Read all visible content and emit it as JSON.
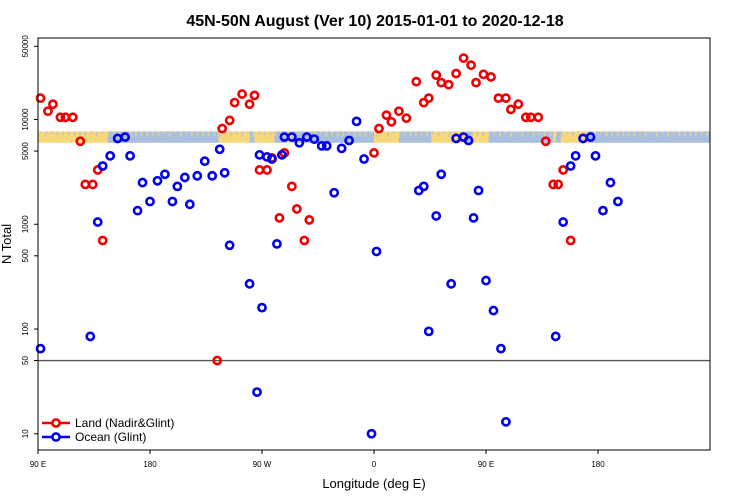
{
  "chart_data": {
    "type": "scatter",
    "title": "45N-50N August (Ver 10)   2015-01-01 to 2020-12-18",
    "xlabel": "Longitude (deg E)",
    "ylabel": "N Total",
    "y_scale": "log",
    "xlim": [
      -90,
      180
    ],
    "ylim": [
      7,
      60000
    ],
    "x_ticks": [
      {
        "value": -90,
        "label": "90 E"
      },
      {
        "value": -45,
        "label": "180"
      },
      {
        "value": 0,
        "label": "90 W"
      },
      {
        "value": 45,
        "label": "0"
      },
      {
        "value": 90,
        "label": "90 E"
      },
      {
        "value": 135,
        "label": "180"
      }
    ],
    "y_ticks": [
      10,
      50,
      100,
      500,
      1000,
      5000,
      10000,
      50000
    ],
    "reference_line": 50,
    "band": {
      "y_low": 6000,
      "y_high": 7700,
      "land_color": "#f9d87a",
      "ocean_color": "#a8bfe0"
    },
    "legend_position": "bottom-left",
    "series": [
      {
        "name": "Land (Nadir&Glint)",
        "color": "#ee0000",
        "points": [
          [
            -89,
            16000
          ],
          [
            -86,
            12000
          ],
          [
            -84,
            14000
          ],
          [
            -81,
            10500
          ],
          [
            -79,
            10500
          ],
          [
            -76,
            10500
          ],
          [
            -73,
            6200
          ],
          [
            -71,
            2400
          ],
          [
            -68,
            2400
          ],
          [
            -66,
            3300
          ],
          [
            -64,
            700
          ],
          [
            -18,
            50
          ],
          [
            -16,
            8200
          ],
          [
            -13,
            9800
          ],
          [
            -11,
            14500
          ],
          [
            -8,
            17500
          ],
          [
            -5,
            14000
          ],
          [
            -3,
            17000
          ],
          [
            -1,
            3300
          ],
          [
            2,
            3300
          ],
          [
            4,
            4300
          ],
          [
            7,
            1150
          ],
          [
            9,
            4800
          ],
          [
            12,
            2300
          ],
          [
            14,
            1400
          ],
          [
            17,
            700
          ],
          [
            19,
            1100
          ],
          [
            45,
            4800
          ],
          [
            47,
            8200
          ],
          [
            50,
            11000
          ],
          [
            52,
            9500
          ],
          [
            55,
            12000
          ],
          [
            58,
            10300
          ],
          [
            62,
            23000
          ],
          [
            65,
            14500
          ],
          [
            67,
            16000
          ],
          [
            70,
            26500
          ],
          [
            72,
            22500
          ],
          [
            75,
            21500
          ],
          [
            78,
            27500
          ],
          [
            81,
            38500
          ],
          [
            84,
            33000
          ],
          [
            86,
            22500
          ],
          [
            89,
            27000
          ],
          [
            92,
            25500
          ],
          [
            95,
            16000
          ],
          [
            98,
            16000
          ],
          [
            100,
            12500
          ],
          [
            103,
            14000
          ],
          [
            106,
            10500
          ],
          [
            108,
            10500
          ],
          [
            111,
            10500
          ],
          [
            114,
            6200
          ],
          [
            117,
            2400
          ],
          [
            119,
            2400
          ],
          [
            121,
            3300
          ],
          [
            124,
            700
          ]
        ]
      },
      {
        "name": "Ocean (Glint)",
        "color": "#0000ee",
        "points": [
          [
            -89,
            65
          ],
          [
            -69,
            85
          ],
          [
            -66,
            1050
          ],
          [
            -64,
            3600
          ],
          [
            -61,
            4500
          ],
          [
            -58,
            6600
          ],
          [
            -55,
            6800
          ],
          [
            -53,
            4500
          ],
          [
            -50,
            1350
          ],
          [
            -48,
            2500
          ],
          [
            -45,
            1650
          ],
          [
            -42,
            2600
          ],
          [
            -39,
            3000
          ],
          [
            -36,
            1650
          ],
          [
            -34,
            2300
          ],
          [
            -31,
            2800
          ],
          [
            -29,
            1550
          ],
          [
            -26,
            2900
          ],
          [
            -23,
            4000
          ],
          [
            -20,
            2900
          ],
          [
            -17,
            5200
          ],
          [
            -15,
            3100
          ],
          [
            -13,
            630
          ],
          [
            -5,
            270
          ],
          [
            0,
            160
          ],
          [
            2,
            4400
          ],
          [
            4,
            4200
          ],
          [
            -2,
            25
          ],
          [
            -1,
            4600
          ],
          [
            6,
            650
          ],
          [
            8,
            4600
          ],
          [
            9,
            6800
          ],
          [
            12,
            6800
          ],
          [
            15,
            6000
          ],
          [
            18,
            6800
          ],
          [
            21,
            6500
          ],
          [
            24,
            5600
          ],
          [
            26,
            5600
          ],
          [
            29,
            2000
          ],
          [
            32,
            5300
          ],
          [
            35,
            6300
          ],
          [
            38,
            9600
          ],
          [
            41,
            4200
          ],
          [
            44,
            10
          ],
          [
            46,
            550
          ],
          [
            63,
            2100
          ],
          [
            65,
            2300
          ],
          [
            67,
            95
          ],
          [
            70,
            1200
          ],
          [
            72,
            3000
          ],
          [
            76,
            270
          ],
          [
            78,
            6600
          ],
          [
            81,
            6800
          ],
          [
            83,
            6300
          ],
          [
            85,
            1150
          ],
          [
            87,
            2100
          ],
          [
            90,
            290
          ],
          [
            93,
            150
          ],
          [
            96,
            65
          ],
          [
            98,
            13
          ],
          [
            118,
            85
          ],
          [
            121,
            1050
          ],
          [
            124,
            3600
          ],
          [
            126,
            4500
          ],
          [
            129,
            6600
          ],
          [
            132,
            6800
          ],
          [
            134,
            4500
          ],
          [
            137,
            1350
          ],
          [
            140,
            2500
          ],
          [
            143,
            1650
          ]
        ]
      }
    ]
  }
}
